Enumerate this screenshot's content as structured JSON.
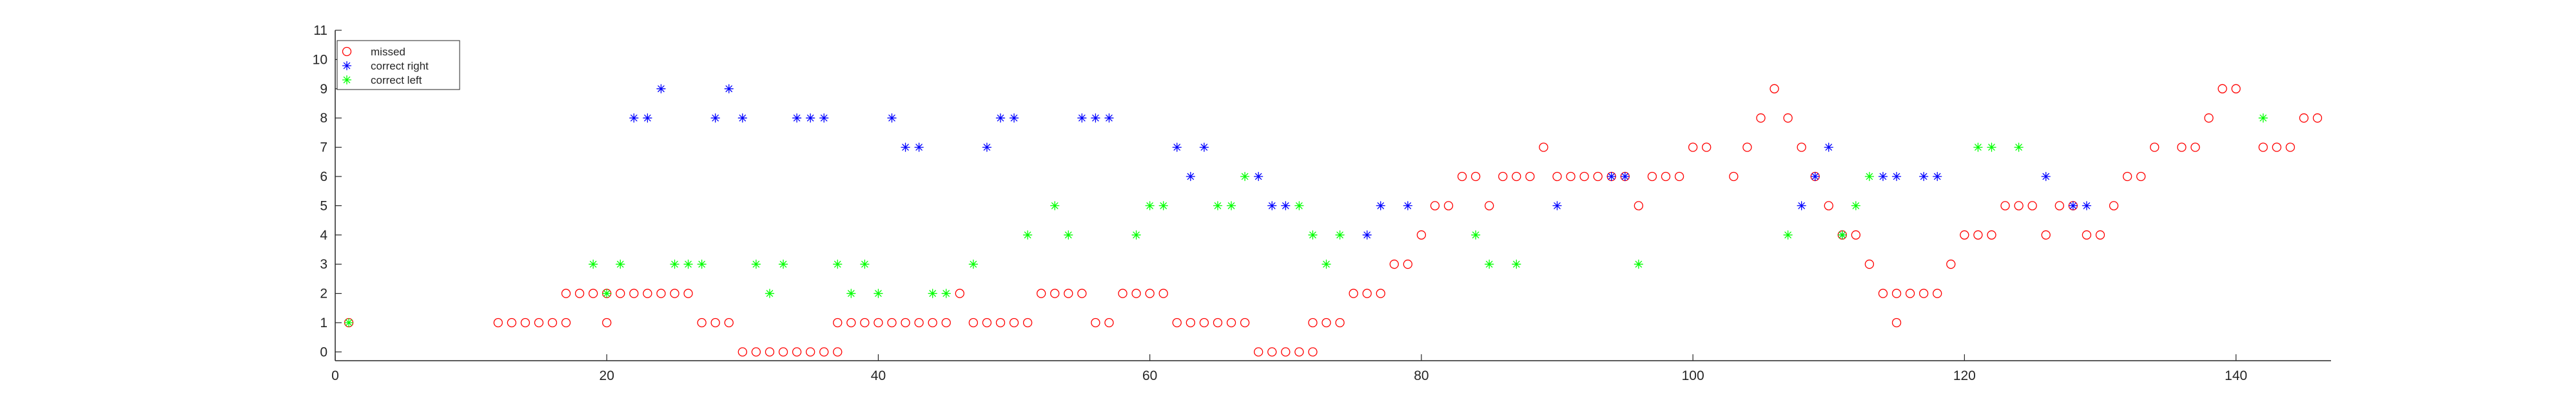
{
  "chart_data": {
    "type": "scatter",
    "title": "",
    "xlabel": "",
    "ylabel": "",
    "xlim": [
      0,
      147
    ],
    "ylim": [
      -0.3,
      11
    ],
    "xticks": [
      0,
      20,
      40,
      60,
      80,
      100,
      120,
      140
    ],
    "yticks": [
      0,
      1,
      2,
      3,
      4,
      5,
      6,
      7,
      8,
      9,
      10,
      11
    ],
    "grid": false,
    "legend_position": "top-left",
    "series": [
      {
        "name": "missed",
        "marker": "circle",
        "color": "#ff0000",
        "points": [
          [
            1,
            1
          ],
          [
            12,
            1
          ],
          [
            13,
            1
          ],
          [
            14,
            1
          ],
          [
            15,
            1
          ],
          [
            16,
            1
          ],
          [
            17,
            1
          ],
          [
            17,
            2
          ],
          [
            18,
            2
          ],
          [
            19,
            2
          ],
          [
            20,
            2
          ],
          [
            20,
            1
          ],
          [
            21,
            2
          ],
          [
            22,
            2
          ],
          [
            23,
            2
          ],
          [
            24,
            2
          ],
          [
            25,
            2
          ],
          [
            26,
            2
          ],
          [
            27,
            1
          ],
          [
            28,
            1
          ],
          [
            29,
            1
          ],
          [
            30,
            0
          ],
          [
            31,
            0
          ],
          [
            32,
            0
          ],
          [
            33,
            0
          ],
          [
            34,
            0
          ],
          [
            35,
            0
          ],
          [
            36,
            0
          ],
          [
            37,
            0
          ],
          [
            37,
            1
          ],
          [
            38,
            1
          ],
          [
            39,
            1
          ],
          [
            40,
            1
          ],
          [
            41,
            1
          ],
          [
            42,
            1
          ],
          [
            43,
            1
          ],
          [
            44,
            1
          ],
          [
            45,
            1
          ],
          [
            46,
            2
          ],
          [
            47,
            1
          ],
          [
            48,
            1
          ],
          [
            49,
            1
          ],
          [
            50,
            1
          ],
          [
            51,
            1
          ],
          [
            52,
            2
          ],
          [
            53,
            2
          ],
          [
            54,
            2
          ],
          [
            55,
            2
          ],
          [
            56,
            1
          ],
          [
            57,
            1
          ],
          [
            58,
            2
          ],
          [
            59,
            2
          ],
          [
            60,
            2
          ],
          [
            61,
            2
          ],
          [
            62,
            1
          ],
          [
            63,
            1
          ],
          [
            64,
            1
          ],
          [
            65,
            1
          ],
          [
            66,
            1
          ],
          [
            67,
            1
          ],
          [
            68,
            0
          ],
          [
            69,
            0
          ],
          [
            70,
            0
          ],
          [
            71,
            0
          ],
          [
            72,
            0
          ],
          [
            72,
            1
          ],
          [
            73,
            1
          ],
          [
            74,
            1
          ],
          [
            75,
            2
          ],
          [
            76,
            2
          ],
          [
            77,
            2
          ],
          [
            78,
            3
          ],
          [
            79,
            3
          ],
          [
            80,
            4
          ],
          [
            81,
            5
          ],
          [
            82,
            5
          ],
          [
            83,
            6
          ],
          [
            84,
            6
          ],
          [
            85,
            5
          ],
          [
            86,
            6
          ],
          [
            87,
            6
          ],
          [
            88,
            6
          ],
          [
            89,
            7
          ],
          [
            90,
            6
          ],
          [
            91,
            6
          ],
          [
            92,
            6
          ],
          [
            93,
            6
          ],
          [
            94,
            6
          ],
          [
            95,
            6
          ],
          [
            96,
            5
          ],
          [
            97,
            6
          ],
          [
            98,
            6
          ],
          [
            99,
            6
          ],
          [
            100,
            7
          ],
          [
            101,
            7
          ],
          [
            103,
            6
          ],
          [
            104,
            7
          ],
          [
            105,
            8
          ],
          [
            106,
            9
          ],
          [
            107,
            8
          ],
          [
            108,
            7
          ],
          [
            109,
            6
          ],
          [
            110,
            5
          ],
          [
            111,
            4
          ],
          [
            112,
            4
          ],
          [
            113,
            3
          ],
          [
            114,
            2
          ],
          [
            115,
            1
          ],
          [
            115,
            2
          ],
          [
            116,
            2
          ],
          [
            117,
            2
          ],
          [
            118,
            2
          ],
          [
            119,
            3
          ],
          [
            120,
            4
          ],
          [
            121,
            4
          ],
          [
            122,
            4
          ],
          [
            123,
            5
          ],
          [
            124,
            5
          ],
          [
            125,
            5
          ],
          [
            126,
            4
          ],
          [
            127,
            5
          ],
          [
            128,
            5
          ],
          [
            129,
            4
          ],
          [
            130,
            4
          ],
          [
            131,
            5
          ],
          [
            132,
            6
          ],
          [
            133,
            6
          ],
          [
            134,
            7
          ],
          [
            136,
            7
          ],
          [
            137,
            7
          ],
          [
            138,
            8
          ],
          [
            139,
            9
          ],
          [
            140,
            9
          ],
          [
            142,
            7
          ],
          [
            143,
            7
          ],
          [
            144,
            7
          ],
          [
            145,
            8
          ],
          [
            146,
            8
          ]
        ]
      },
      {
        "name": "correct right",
        "marker": "asterisk",
        "color": "#0000ff",
        "points": [
          [
            22,
            8
          ],
          [
            23,
            8
          ],
          [
            24,
            9
          ],
          [
            28,
            8
          ],
          [
            29,
            9
          ],
          [
            30,
            8
          ],
          [
            34,
            8
          ],
          [
            35,
            8
          ],
          [
            36,
            8
          ],
          [
            41,
            8
          ],
          [
            42,
            7
          ],
          [
            43,
            7
          ],
          [
            48,
            7
          ],
          [
            49,
            8
          ],
          [
            50,
            8
          ],
          [
            55,
            8
          ],
          [
            56,
            8
          ],
          [
            57,
            8
          ],
          [
            62,
            7
          ],
          [
            63,
            6
          ],
          [
            64,
            7
          ],
          [
            68,
            6
          ],
          [
            69,
            5
          ],
          [
            70,
            5
          ],
          [
            76,
            4
          ],
          [
            77,
            5
          ],
          [
            79,
            5
          ],
          [
            90,
            5
          ],
          [
            94,
            6
          ],
          [
            95,
            6
          ],
          [
            108,
            5
          ],
          [
            109,
            6
          ],
          [
            110,
            7
          ],
          [
            111,
            4
          ],
          [
            114,
            6
          ],
          [
            115,
            6
          ],
          [
            117,
            6
          ],
          [
            118,
            6
          ],
          [
            126,
            6
          ],
          [
            128,
            5
          ],
          [
            129,
            5
          ]
        ]
      },
      {
        "name": "correct left",
        "marker": "asterisk",
        "color": "#00ff00",
        "points": [
          [
            1,
            1
          ],
          [
            19,
            3
          ],
          [
            20,
            2
          ],
          [
            21,
            3
          ],
          [
            25,
            3
          ],
          [
            26,
            3
          ],
          [
            27,
            3
          ],
          [
            31,
            3
          ],
          [
            32,
            2
          ],
          [
            33,
            3
          ],
          [
            37,
            3
          ],
          [
            38,
            2
          ],
          [
            39,
            3
          ],
          [
            40,
            2
          ],
          [
            44,
            2
          ],
          [
            45,
            2
          ],
          [
            47,
            3
          ],
          [
            51,
            4
          ],
          [
            53,
            5
          ],
          [
            54,
            4
          ],
          [
            59,
            4
          ],
          [
            60,
            5
          ],
          [
            61,
            5
          ],
          [
            65,
            5
          ],
          [
            66,
            5
          ],
          [
            67,
            6
          ],
          [
            71,
            5
          ],
          [
            72,
            4
          ],
          [
            73,
            3
          ],
          [
            74,
            4
          ],
          [
            84,
            4
          ],
          [
            85,
            3
          ],
          [
            87,
            3
          ],
          [
            96,
            3
          ],
          [
            107,
            4
          ],
          [
            111,
            4
          ],
          [
            112,
            5
          ],
          [
            113,
            6
          ],
          [
            121,
            7
          ],
          [
            122,
            7
          ],
          [
            124,
            7
          ],
          [
            142,
            8
          ]
        ]
      }
    ]
  }
}
